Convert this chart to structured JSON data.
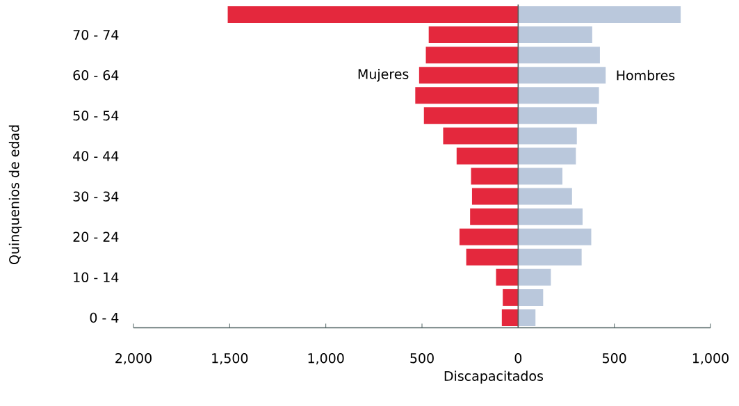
{
  "chart_data": {
    "type": "bar",
    "orientation": "horizontal",
    "stacked": true,
    "xlabel": "Discapacitados",
    "ylabel": "Quinquenios de edad",
    "categories": [
      null,
      "70 - 74",
      null,
      "60 - 64",
      null,
      "50 - 54",
      null,
      "40 - 44",
      null,
      "30 - 34",
      null,
      "20 - 24",
      null,
      "10 - 14",
      null,
      "0 - 4"
    ],
    "series": [
      {
        "name": "Mujeres",
        "color": "#e4283d",
        "values": [
          -1510,
          -465,
          -480,
          -515,
          -535,
          -490,
          -390,
          -320,
          -245,
          -240,
          -250,
          -305,
          -270,
          -115,
          -80,
          -85
        ]
      },
      {
        "name": "Hombres",
        "color": "#bac8dc",
        "values": [
          845,
          385,
          425,
          455,
          420,
          410,
          305,
          300,
          230,
          280,
          335,
          380,
          330,
          170,
          130,
          90
        ]
      }
    ],
    "xlim": [
      -2000,
      1000
    ],
    "xticks": [
      {
        "value": -2000,
        "label": "2,000"
      },
      {
        "value": -1500,
        "label": "1,500"
      },
      {
        "value": -1000,
        "label": "1,000"
      },
      {
        "value": -500,
        "label": "500"
      },
      0,
      500,
      {
        "value": 1000,
        "label": "1,000"
      }
    ]
  }
}
